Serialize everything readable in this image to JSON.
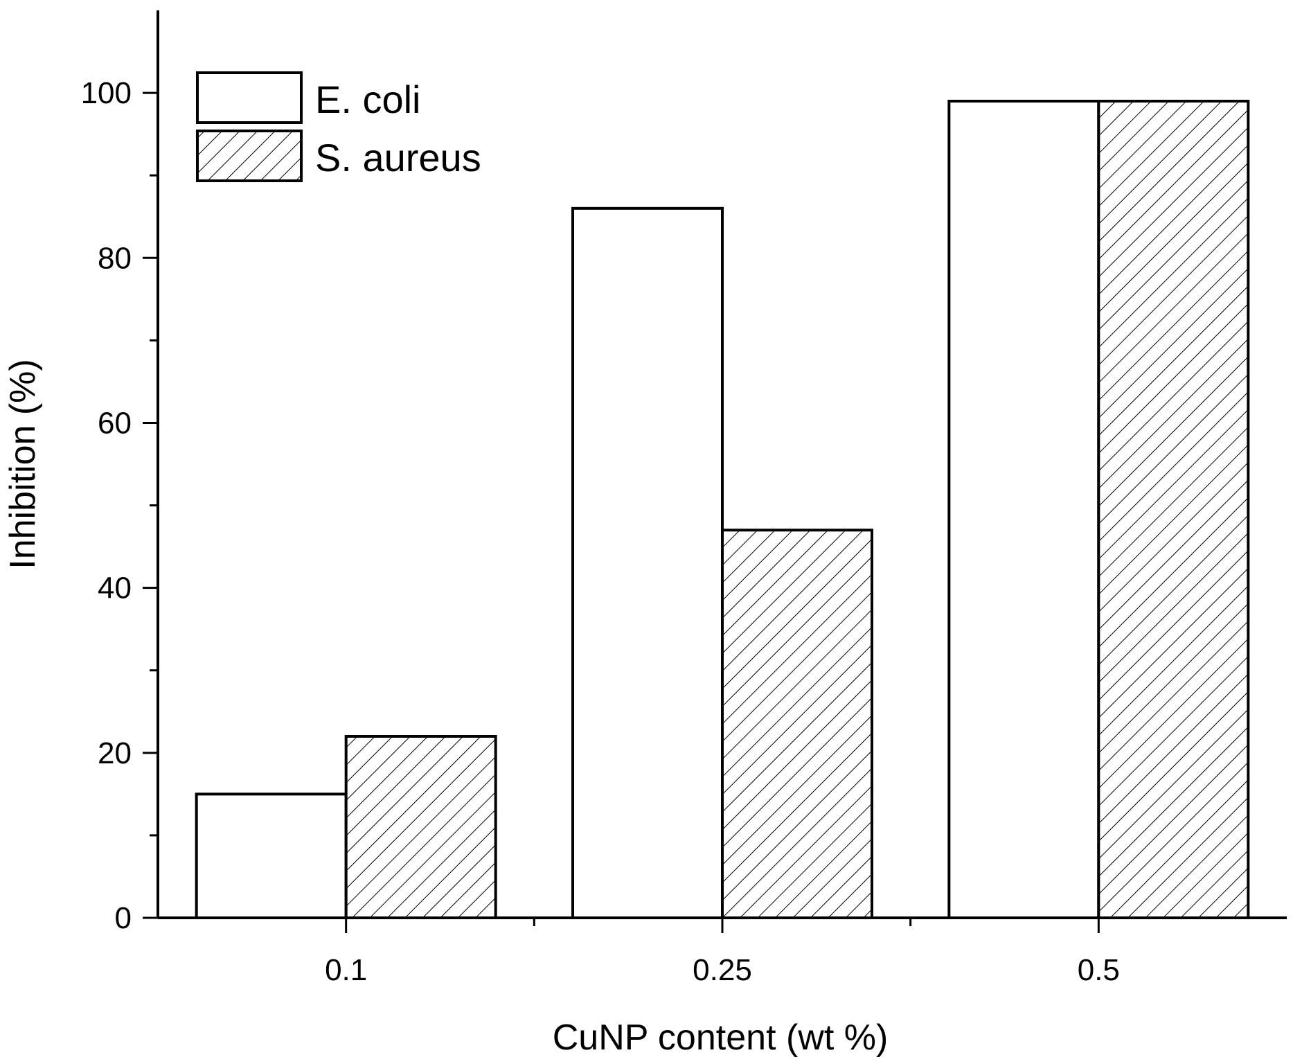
{
  "chart_data": {
    "type": "bar",
    "title": "",
    "xlabel": "CuNP content (wt %)",
    "ylabel": "Inhibition (%)",
    "categories": [
      "0.1",
      "0.25",
      "0.5"
    ],
    "series": [
      {
        "name": "E. coli",
        "values": [
          15,
          86,
          99
        ],
        "fill": "none"
      },
      {
        "name": "S. aureus",
        "values": [
          22,
          47,
          99
        ],
        "fill": "hatch"
      }
    ],
    "ylim": [
      0,
      110
    ],
    "yticks": [
      0,
      20,
      40,
      60,
      80,
      100
    ],
    "yticks_minor": [
      10,
      30,
      50,
      70,
      90
    ],
    "grid": false,
    "legend_position": "top-left",
    "colors": {
      "stroke": "#000000",
      "background": "#ffffff",
      "hatch": "#000000"
    }
  }
}
